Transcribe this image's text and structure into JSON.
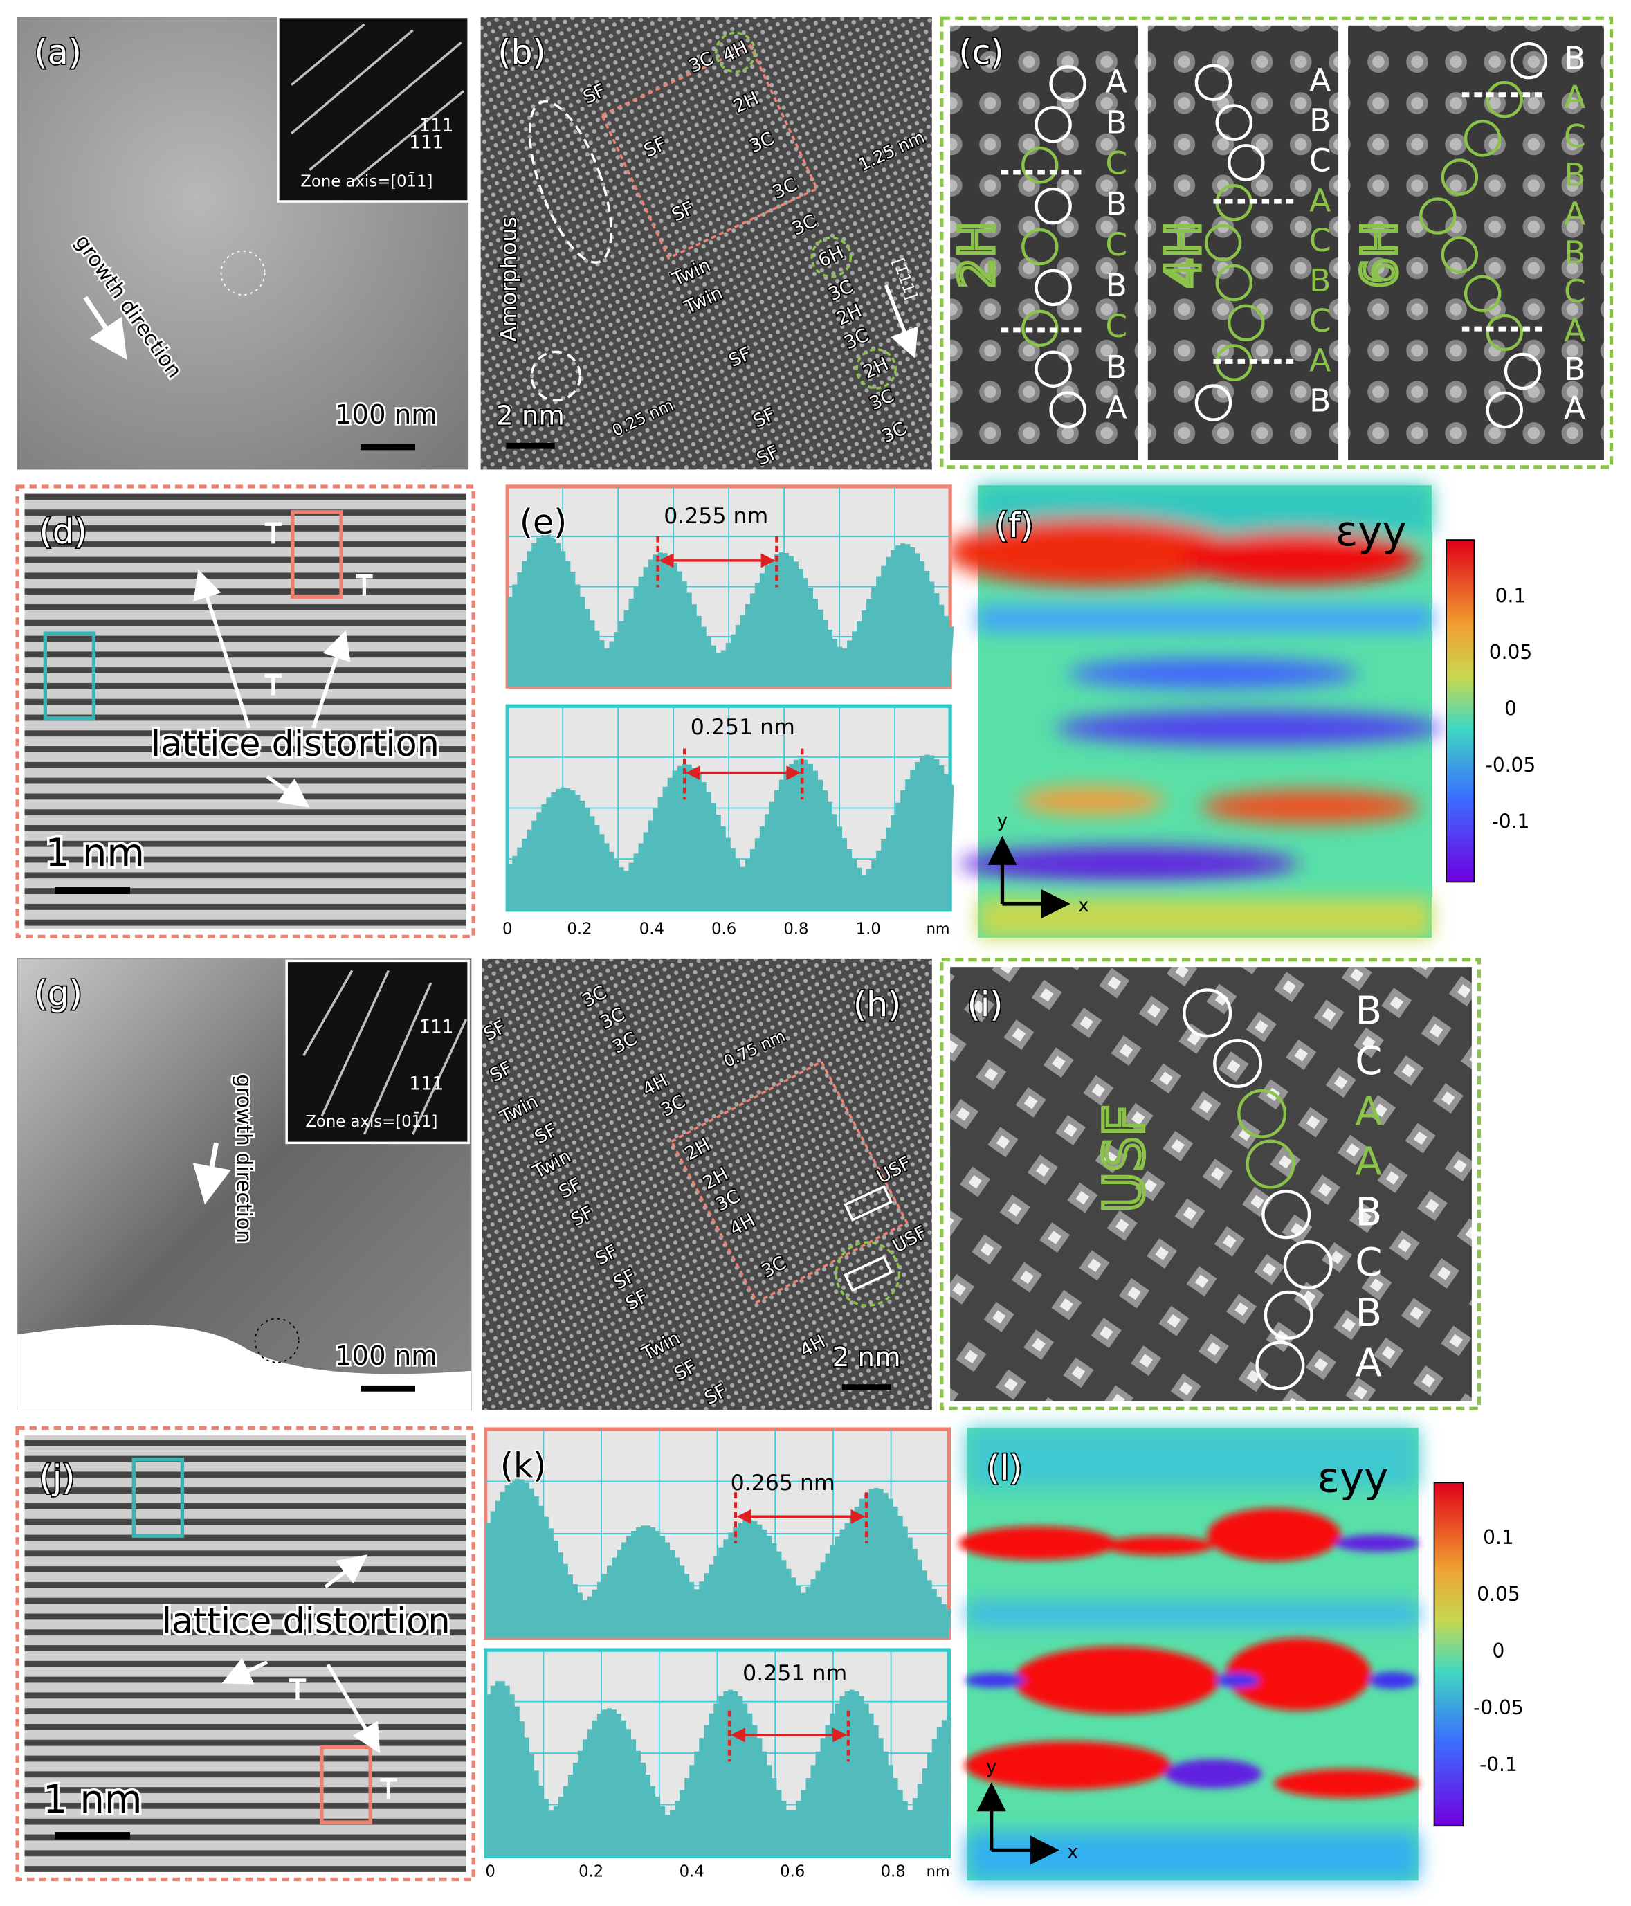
{
  "panels": {
    "a": {
      "label": "(a)",
      "inset_spot_1": "1̄11",
      "inset_spot_2": "111",
      "zone_axis": "Zone axis=[01̄1]",
      "arrow_label": "growth direction",
      "scale_bar": "100 nm"
    },
    "b": {
      "label": "(b)",
      "annotations": [
        "3C",
        "4H",
        "SF",
        "2H",
        "SF",
        "3C",
        "SF",
        "3C",
        "3C",
        "Twin",
        "6H",
        "Twin",
        "3C",
        "2H",
        "3C",
        "SF",
        "2H",
        "SF",
        "3C",
        "SF",
        "3C"
      ],
      "side_label": "Amorphous",
      "spacing_1": "1.25 nm",
      "spacing_2": "0.25 nm",
      "direction": "[1̄11]",
      "scale_bar": "2 nm"
    },
    "c": {
      "label": "(c)",
      "polytypes": [
        "2H",
        "4H",
        "6H"
      ],
      "stack_2H": [
        "A",
        "B",
        "C",
        "B",
        "C",
        "B",
        "C",
        "B",
        "A"
      ],
      "stack_4H": [
        "A",
        "B",
        "C",
        "A",
        "C",
        "B",
        "C",
        "A",
        "B"
      ],
      "stack_6H": [
        "B",
        "A",
        "C",
        "B",
        "A",
        "B",
        "C",
        "A",
        "B",
        "A"
      ]
    },
    "d": {
      "label": "(d)",
      "annotation": "lattice distortion",
      "scale_bar": "1 nm"
    },
    "e": {
      "label": "(e)",
      "spacing_top": "0.255 nm",
      "spacing_bottom": "0.251 nm",
      "x_ticks": [
        "0",
        "0.2",
        "0.4",
        "0.6",
        "0.8",
        "1.0"
      ],
      "x_unit": "nm"
    },
    "f": {
      "label": "(f)",
      "quantity": "εyy",
      "colorbar_ticks": [
        "0.1",
        "0.05",
        "0",
        "-0.05",
        "-0.1"
      ],
      "axis_y": "y",
      "axis_x": "x"
    },
    "g": {
      "label": "(g)",
      "inset_spot_1": "1̄11",
      "inset_spot_2": "111",
      "zone_axis": "Zone axis=[01̄1]",
      "arrow_label": "growth direction",
      "scale_bar": "100 nm"
    },
    "h": {
      "label": "(h)",
      "annotations": [
        "SF",
        "3C",
        "SF",
        "3C",
        "3C",
        "Twin",
        "4H",
        "3C",
        "SF",
        "Twin",
        "2H",
        "SF",
        "SF",
        "2H",
        "3C",
        "4H",
        "SF",
        "SF",
        "SF",
        "3C",
        "USF",
        "USF",
        "Twin",
        "SF",
        "4H",
        "SF"
      ],
      "spacing": "0.75 nm",
      "scale_bar": "2 nm"
    },
    "i": {
      "label": "(i)",
      "fault": "USF",
      "stack": [
        "B",
        "C",
        "A",
        "A",
        "B",
        "C",
        "B",
        "A"
      ]
    },
    "j": {
      "label": "(j)",
      "annotation": "lattice distortion",
      "scale_bar": "1 nm"
    },
    "k": {
      "label": "(k)",
      "spacing_top": "0.265 nm",
      "spacing_bottom": "0.251 nm",
      "x_ticks": [
        "0",
        "0.2",
        "0.4",
        "0.6",
        "0.8"
      ],
      "x_unit": "nm"
    },
    "l": {
      "label": "(l)",
      "quantity": "εyy",
      "colorbar_ticks": [
        "0.1",
        "0.05",
        "0",
        "-0.05",
        "-0.1"
      ],
      "axis_y": "y",
      "axis_x": "x"
    }
  }
}
